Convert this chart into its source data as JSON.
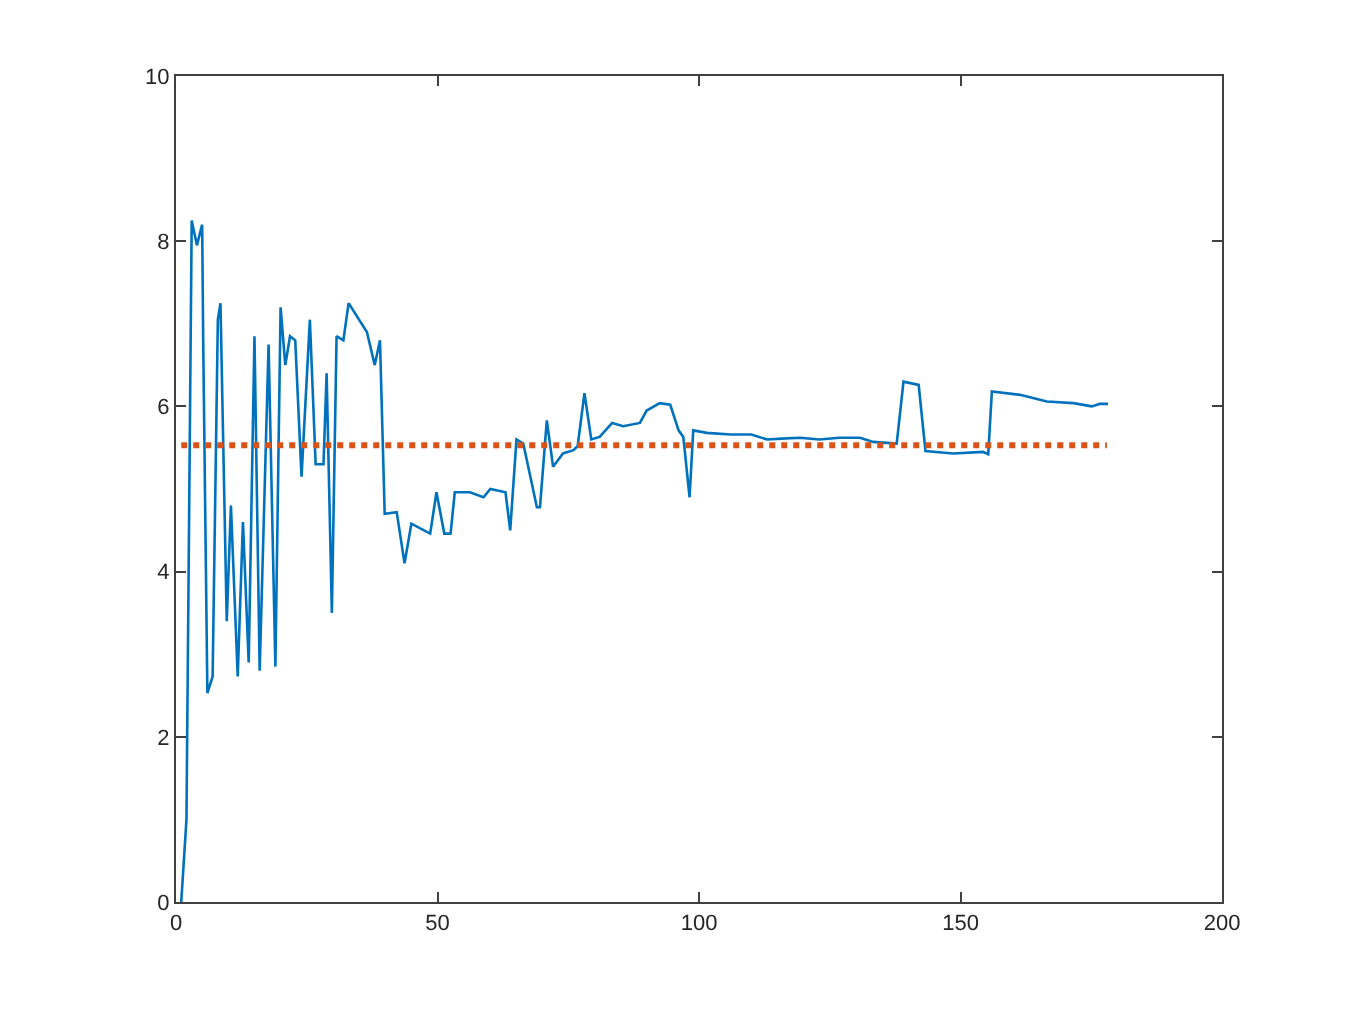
{
  "chart_data": {
    "type": "line",
    "xlim": [
      0,
      200
    ],
    "xticks": [
      0,
      50,
      100,
      150,
      200
    ],
    "ylim": [
      0,
      10
    ],
    "yticks": [
      0,
      2,
      4,
      6,
      8,
      10
    ],
    "marker": "none",
    "series": [
      {
        "color": "#0072bd",
        "line_style": "solid",
        "x": [
          1,
          2,
          3,
          4,
          5,
          5.2,
          6,
          7,
          8,
          8.5,
          9.7,
          10.5,
          11.8,
          12.8,
          13.9,
          15,
          16,
          17.7,
          19,
          20,
          20.9,
          21.8,
          22.8,
          24,
          25.6,
          26.7,
          28.2,
          28.8,
          29.8,
          30.7,
          32,
          33,
          36.5,
          38,
          39,
          39.9,
          42.2,
          43.7,
          45,
          48.6,
          49.8,
          51.3,
          52.5,
          53.3,
          56.2,
          58.8,
          60.1,
          63,
          63.9,
          65.1,
          66.4,
          69,
          69.6,
          70.9,
          72.1,
          74,
          76,
          76.8,
          78.1,
          79.4,
          81,
          83.4,
          85.5,
          88.7,
          90,
          92.5,
          94.5,
          96.1,
          97,
          98.2,
          98.9,
          101.5,
          106,
          110,
          113,
          115.8,
          119.3,
          123,
          126.9,
          130.8,
          133.3,
          137.8,
          139.1,
          142,
          143.3,
          148.6,
          154.3,
          155.3,
          156,
          161.4,
          166.5,
          171.6,
          175.1,
          176.6,
          178.2
        ],
        "values": [
          0,
          1.0,
          8.25,
          7.95,
          8.2,
          6.8,
          2.53,
          2.73,
          7.05,
          7.25,
          3.4,
          4.8,
          2.73,
          4.6,
          2.9,
          6.85,
          2.8,
          6.75,
          2.85,
          7.2,
          6.5,
          6.85,
          6.8,
          5.15,
          7.05,
          5.3,
          5.3,
          6.4,
          3.5,
          6.85,
          6.8,
          7.25,
          6.9,
          6.5,
          6.8,
          4.7,
          4.72,
          4.1,
          4.58,
          4.46,
          4.96,
          4.46,
          4.46,
          4.96,
          4.96,
          4.9,
          5.0,
          4.96,
          4.5,
          5.6,
          5.55,
          4.78,
          4.78,
          5.83,
          5.27,
          5.43,
          5.47,
          5.52,
          6.16,
          5.6,
          5.63,
          5.8,
          5.76,
          5.8,
          5.95,
          6.04,
          6.02,
          5.71,
          5.63,
          4.9,
          5.71,
          5.68,
          5.66,
          5.66,
          5.6,
          5.61,
          5.62,
          5.6,
          5.62,
          5.62,
          5.57,
          5.55,
          6.3,
          6.26,
          5.46,
          5.43,
          5.45,
          5.42,
          6.18,
          6.14,
          6.06,
          6.04,
          6.0,
          6.03,
          6.03
        ]
      },
      {
        "color": "#d95319",
        "line_style": "dotted",
        "x": [
          1,
          178
        ],
        "values": [
          5.53,
          5.53
        ]
      }
    ]
  }
}
